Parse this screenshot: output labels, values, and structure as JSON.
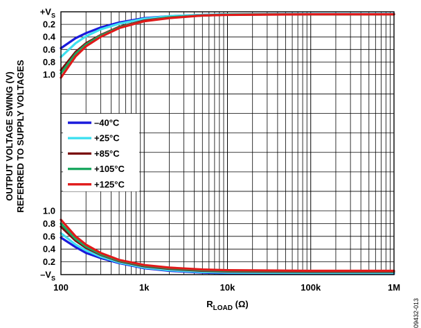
{
  "chart_data": {
    "type": "line",
    "xscale": "log",
    "xlim": [
      100,
      1000000
    ],
    "xlabel": "R",
    "xlabel_sub": "LOAD",
    "xlabel_unit": "(Ω)",
    "ylabel_line1": "OUTPUT VOLTAGE SWING (V)",
    "ylabel_line2": "REFERRED TO SUPPLY VOLTAGES",
    "x_ticks": [
      {
        "value": 100,
        "label": "100"
      },
      {
        "value": 1000,
        "label": "1k"
      },
      {
        "value": 10000,
        "label": "10k"
      },
      {
        "value": 100000,
        "label": "100k"
      },
      {
        "value": 1000000,
        "label": "1M"
      }
    ],
    "y_ticks_top": [
      {
        "value": 0,
        "label": "+V",
        "sub": "S"
      },
      {
        "value": 0.2,
        "label": "0.2"
      },
      {
        "value": 0.4,
        "label": "0.4"
      },
      {
        "value": 0.6,
        "label": "0.6"
      },
      {
        "value": 0.8,
        "label": "0.8"
      },
      {
        "value": 1.0,
        "label": "1.0"
      }
    ],
    "y_ticks_bottom": [
      {
        "value": 1.0,
        "label": "1.0"
      },
      {
        "value": 0.8,
        "label": "0.8"
      },
      {
        "value": 0.6,
        "label": "0.6"
      },
      {
        "value": 0.4,
        "label": "0.4"
      },
      {
        "value": 0.2,
        "label": "0.2"
      },
      {
        "value": 0,
        "label": "–V",
        "sub": "S"
      }
    ],
    "legend_placement": "left-middle",
    "grid": true,
    "series": [
      {
        "name": "–40°C",
        "color": "#1a1adc",
        "high": {
          "x": [
            100,
            150,
            200,
            300,
            500,
            1000,
            2000,
            5000,
            10000,
            100000,
            1000000
          ],
          "y": [
            0.58,
            0.42,
            0.34,
            0.25,
            0.17,
            0.1,
            0.07,
            0.05,
            0.04,
            0.035,
            0.035
          ]
        },
        "low": {
          "x": [
            100,
            150,
            200,
            300,
            500,
            1000,
            2000,
            5000,
            10000,
            100000,
            1000000
          ],
          "y": [
            0.58,
            0.43,
            0.34,
            0.26,
            0.18,
            0.1,
            0.06,
            0.03,
            0.02,
            0.015,
            0.015
          ]
        }
      },
      {
        "name": "+25°C",
        "color": "#3ee0f0",
        "high": {
          "x": [
            100,
            150,
            200,
            300,
            500,
            1000,
            2000,
            5000,
            10000,
            100000,
            1000000
          ],
          "y": [
            0.72,
            0.5,
            0.39,
            0.28,
            0.19,
            0.11,
            0.07,
            0.05,
            0.04,
            0.035,
            0.035
          ]
        },
        "low": {
          "x": [
            100,
            150,
            200,
            300,
            500,
            1000,
            2000,
            5000,
            10000,
            100000,
            1000000
          ],
          "y": [
            0.65,
            0.47,
            0.38,
            0.28,
            0.19,
            0.11,
            0.07,
            0.04,
            0.03,
            0.025,
            0.025
          ]
        }
      },
      {
        "name": "+85°C",
        "color": "#7a1010",
        "high": {
          "x": [
            100,
            150,
            200,
            300,
            500,
            1000,
            2000,
            5000,
            10000,
            100000,
            1000000
          ],
          "y": [
            0.93,
            0.64,
            0.5,
            0.37,
            0.24,
            0.14,
            0.09,
            0.06,
            0.045,
            0.04,
            0.04
          ]
        },
        "low": {
          "x": [
            100,
            150,
            200,
            300,
            500,
            1000,
            2000,
            5000,
            10000,
            100000,
            1000000
          ],
          "y": [
            0.75,
            0.53,
            0.42,
            0.31,
            0.21,
            0.13,
            0.09,
            0.06,
            0.05,
            0.045,
            0.045
          ]
        }
      },
      {
        "name": "+105°C",
        "color": "#1aa860",
        "high": {
          "x": [
            100,
            150,
            200,
            300,
            500,
            1000,
            2000,
            5000,
            10000,
            100000,
            1000000
          ],
          "y": [
            0.98,
            0.67,
            0.52,
            0.38,
            0.25,
            0.15,
            0.09,
            0.06,
            0.045,
            0.04,
            0.04
          ]
        },
        "low": {
          "x": [
            100,
            150,
            200,
            300,
            500,
            1000,
            2000,
            5000,
            10000,
            100000,
            1000000
          ],
          "y": [
            0.8,
            0.56,
            0.44,
            0.32,
            0.22,
            0.14,
            0.1,
            0.07,
            0.06,
            0.055,
            0.055
          ]
        }
      },
      {
        "name": "+125°C",
        "color": "#e01a1a",
        "high": {
          "x": [
            100,
            150,
            200,
            300,
            500,
            1000,
            2000,
            5000,
            10000,
            100000,
            1000000
          ],
          "y": [
            1.05,
            0.71,
            0.55,
            0.4,
            0.26,
            0.15,
            0.1,
            0.06,
            0.05,
            0.04,
            0.04
          ]
        },
        "low": {
          "x": [
            100,
            150,
            200,
            300,
            500,
            1000,
            2000,
            5000,
            10000,
            100000,
            1000000
          ],
          "y": [
            0.86,
            0.6,
            0.47,
            0.34,
            0.23,
            0.15,
            0.11,
            0.08,
            0.07,
            0.06,
            0.06
          ]
        }
      }
    ]
  },
  "figure_id": "09432-013"
}
